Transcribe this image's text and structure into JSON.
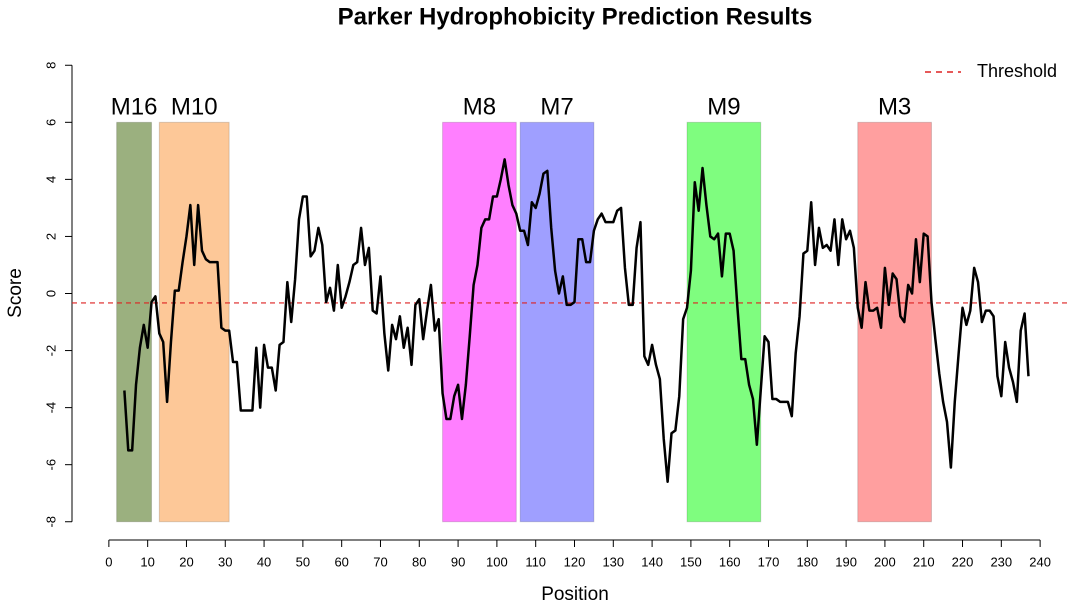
{
  "chart_data": {
    "type": "line",
    "title": "Parker Hydrophobicity Prediction Results",
    "x_label": "Position",
    "y_label": "Score",
    "xlim": [
      -9.5,
      247.7
    ],
    "ylim": [
      -8.64,
      8.64
    ],
    "xticks": [
      0,
      10,
      20,
      30,
      40,
      50,
      60,
      70,
      80,
      90,
      100,
      110,
      120,
      130,
      140,
      150,
      160,
      170,
      180,
      190,
      200,
      210,
      220,
      230,
      240
    ],
    "yticks": [
      -8,
      -6,
      -4,
      -2,
      0,
      2,
      4,
      6,
      8
    ],
    "legend_position": "topright",
    "regions": [
      {
        "label": "M16",
        "start": 2,
        "end": 11,
        "ymin": -8,
        "ymax": 6,
        "color": "#9bb07f"
      },
      {
        "label": "M10",
        "start": 13,
        "end": 31,
        "ymin": -8,
        "ymax": 6,
        "color": "#fdc898"
      },
      {
        "label": "M8",
        "start": 86,
        "end": 105,
        "ymin": -8,
        "ymax": 6,
        "color": "#ff7fff"
      },
      {
        "label": "M7",
        "start": 106,
        "end": 125,
        "ymin": -8,
        "ymax": 6,
        "color": "#9f9fff"
      },
      {
        "label": "M9",
        "start": 149,
        "end": 168,
        "ymin": -8,
        "ymax": 6,
        "color": "#7ffd7f"
      },
      {
        "label": "M3",
        "start": 193,
        "end": 212,
        "ymin": -8,
        "ymax": 6,
        "color": "#ff9f9f"
      }
    ],
    "threshold": {
      "name": "Threshold",
      "value": -0.33,
      "color": "#dd2222"
    },
    "series": [
      {
        "color": "#000000",
        "x": [
          4,
          5,
          6,
          7,
          8,
          9,
          10,
          11,
          12,
          13,
          14,
          15,
          16,
          17,
          18,
          19,
          20,
          21,
          22,
          23,
          24,
          25,
          26,
          27,
          28,
          29,
          30,
          31,
          32,
          33,
          34,
          35,
          36,
          37,
          38,
          39,
          40,
          41,
          42,
          43,
          44,
          45,
          46,
          47,
          48,
          49,
          50,
          51,
          52,
          53,
          54,
          55,
          56,
          57,
          58,
          59,
          60,
          61,
          62,
          63,
          64,
          65,
          66,
          67,
          68,
          69,
          70,
          71,
          72,
          73,
          74,
          75,
          76,
          77,
          78,
          79,
          80,
          81,
          82,
          83,
          84,
          85,
          86,
          87,
          88,
          89,
          90,
          91,
          92,
          93,
          94,
          95,
          96,
          97,
          98,
          99,
          100,
          101,
          102,
          103,
          104,
          105,
          106,
          107,
          108,
          109,
          110,
          111,
          112,
          113,
          114,
          115,
          116,
          117,
          118,
          119,
          120,
          121,
          122,
          123,
          124,
          125,
          126,
          127,
          128,
          129,
          130,
          131,
          132,
          133,
          134,
          135,
          136,
          137,
          138,
          139,
          140,
          141,
          142,
          143,
          144,
          145,
          146,
          147,
          148,
          149,
          150,
          151,
          152,
          153,
          154,
          155,
          156,
          157,
          158,
          159,
          160,
          161,
          162,
          163,
          164,
          165,
          166,
          167,
          168,
          169,
          170,
          171,
          172,
          173,
          174,
          175,
          176,
          177,
          178,
          179,
          180,
          181,
          182,
          183,
          184,
          185,
          186,
          187,
          188,
          189,
          190,
          191,
          192,
          193,
          194,
          195,
          196,
          197,
          198,
          199,
          200,
          201,
          202,
          203,
          204,
          205,
          206,
          207,
          208,
          209,
          210,
          211,
          212,
          213,
          214,
          215,
          216,
          217,
          218,
          219,
          220,
          221,
          222,
          223,
          224,
          225,
          226,
          227,
          228,
          229,
          230,
          231,
          232,
          233,
          234,
          235,
          236,
          237
        ],
        "values": [
          -3.4,
          -5.5,
          -5.5,
          -3.2,
          -1.9,
          -1.1,
          -1.9,
          -0.3,
          -0.1,
          -1.4,
          -1.7,
          -3.8,
          -1.7,
          0.1,
          0.1,
          1.1,
          2.0,
          3.1,
          1.0,
          3.1,
          1.5,
          1.2,
          1.1,
          1.1,
          1.1,
          -1.2,
          -1.3,
          -1.3,
          -2.4,
          -2.4,
          -4.1,
          -4.1,
          -4.1,
          -4.1,
          -1.9,
          -4.0,
          -1.8,
          -2.6,
          -2.6,
          -3.4,
          -1.8,
          -1.7,
          0.4,
          -1.0,
          0.5,
          2.6,
          3.4,
          3.4,
          1.3,
          1.5,
          2.3,
          1.7,
          -0.3,
          0.2,
          -0.6,
          1.0,
          -0.5,
          -0.1,
          0.4,
          1.0,
          1.1,
          2.3,
          1.0,
          1.6,
          -0.6,
          -0.7,
          0.6,
          -1.4,
          -2.7,
          -1.1,
          -1.6,
          -0.8,
          -1.9,
          -1.2,
          -2.5,
          -0.4,
          -0.2,
          -1.6,
          -0.6,
          0.3,
          -1.3,
          -0.9,
          -3.5,
          -4.4,
          -4.4,
          -3.6,
          -3.2,
          -4.4,
          -3.2,
          -1.5,
          0.3,
          1.0,
          2.3,
          2.6,
          2.6,
          3.4,
          3.4,
          4.0,
          4.7,
          3.8,
          3.1,
          2.8,
          2.2,
          2.2,
          1.7,
          3.2,
          3.0,
          3.5,
          4.2,
          4.3,
          2.3,
          0.8,
          0.0,
          0.6,
          -0.4,
          -0.4,
          -0.3,
          1.9,
          1.9,
          1.1,
          1.1,
          2.2,
          2.6,
          2.8,
          2.5,
          2.5,
          2.5,
          2.9,
          3.0,
          0.9,
          -0.4,
          -0.4,
          1.6,
          2.5,
          -2.2,
          -2.5,
          -1.8,
          -2.5,
          -3.0,
          -5.1,
          -6.6,
          -4.9,
          -4.8,
          -3.6,
          -0.9,
          -0.5,
          0.8,
          3.9,
          2.9,
          4.4,
          3.1,
          2.0,
          1.9,
          2.1,
          0.6,
          2.1,
          2.1,
          1.5,
          -0.5,
          -2.3,
          -2.3,
          -3.2,
          -3.7,
          -5.3,
          -3.4,
          -1.5,
          -1.7,
          -3.7,
          -3.7,
          -3.8,
          -3.8,
          -3.8,
          -4.3,
          -2.1,
          -0.8,
          1.4,
          1.5,
          3.2,
          1.0,
          2.3,
          1.6,
          1.7,
          1.5,
          2.6,
          1.0,
          2.6,
          1.9,
          2.2,
          1.6,
          -0.5,
          -1.2,
          0.4,
          -0.6,
          -0.6,
          -0.5,
          -1.2,
          0.9,
          -0.4,
          0.7,
          0.5,
          -0.8,
          -1.0,
          0.3,
          0.0,
          1.9,
          0.4,
          2.1,
          2.0,
          -0.3,
          -1.6,
          -2.8,
          -3.8,
          -4.5,
          -6.1,
          -3.8,
          -2.1,
          -0.5,
          -1.1,
          -0.6,
          0.9,
          0.4,
          -1.0,
          -0.6,
          -0.6,
          -0.8,
          -2.9,
          -3.6,
          -1.7,
          -2.6,
          -3.1,
          -3.8,
          -1.3,
          -0.7,
          -2.9
        ]
      }
    ]
  }
}
